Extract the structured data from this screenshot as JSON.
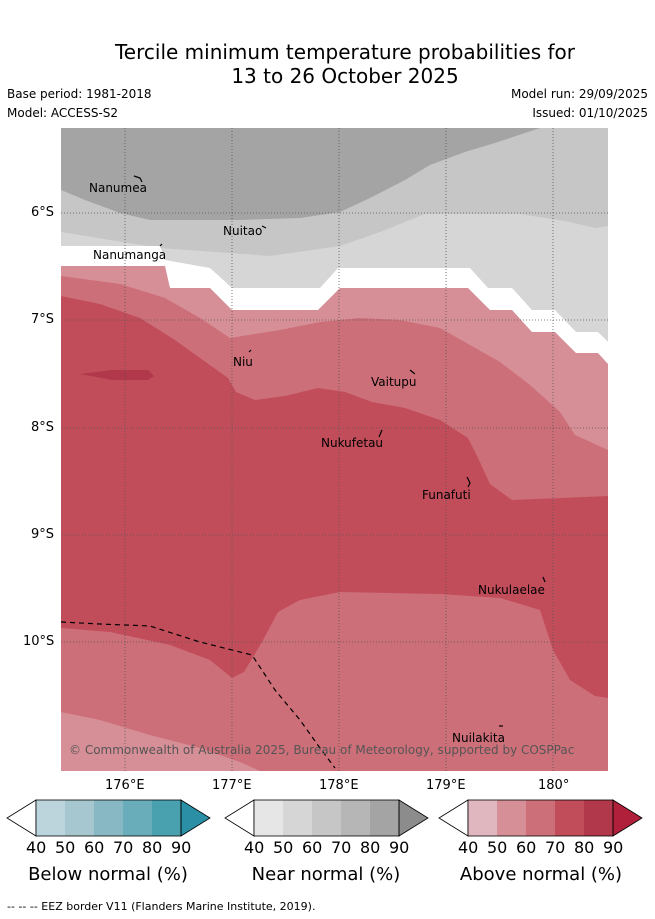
{
  "header": {
    "title_line1": "Tercile minimum temperature probabilities for",
    "title_line2": "13 to 26 October 2025",
    "base_period": "Base period: 1981-2018",
    "model": "Model: ACCESS-S2",
    "model_run": "Model run: 29/09/2025",
    "issued": "Issued: 01/10/2025"
  },
  "map": {
    "longitude_labels": [
      "176°E",
      "177°E",
      "178°E",
      "179°E",
      "180°"
    ],
    "latitude_labels": [
      "6°S",
      "7°S",
      "8°S",
      "9°S",
      "10°S"
    ],
    "places": [
      {
        "name": "Nanumea"
      },
      {
        "name": "Nuitao"
      },
      {
        "name": "Nanumanga"
      },
      {
        "name": "Niu"
      },
      {
        "name": "Vaitupu"
      },
      {
        "name": "Nukufetau"
      },
      {
        "name": "Funafuti"
      },
      {
        "name": "Nukulaelae"
      },
      {
        "name": "Nuilakita"
      }
    ],
    "copyright": "© Commonwealth of Australia 2025, Bureau of Meteorology, supported by COSPPac"
  },
  "legend": {
    "tick_labels": [
      "40",
      "50",
      "60",
      "70",
      "80",
      "90"
    ],
    "bars": [
      {
        "title": "Below normal (%)",
        "colors": [
          "#ffffff",
          "#bcd4dc",
          "#a6c7cf",
          "#88b8c4",
          "#69adbb",
          "#49a1b0",
          "#2b8fa5"
        ]
      },
      {
        "title": "Near normal (%)",
        "colors": [
          "#ffffff",
          "#e6e6e6",
          "#d6d6d6",
          "#c6c6c6",
          "#b6b6b6",
          "#a4a4a4",
          "#8c8c8c"
        ]
      },
      {
        "title": "Above normal (%)",
        "colors": [
          "#ffffff",
          "#e1b7bf",
          "#d68f97",
          "#cd6f79",
          "#c24d5a",
          "#b0384a",
          "#b0203a"
        ]
      }
    ]
  },
  "footer": {
    "eez_text": "--  --  -- EEZ border V11 (Flanders Marine Institute, 2019)."
  }
}
